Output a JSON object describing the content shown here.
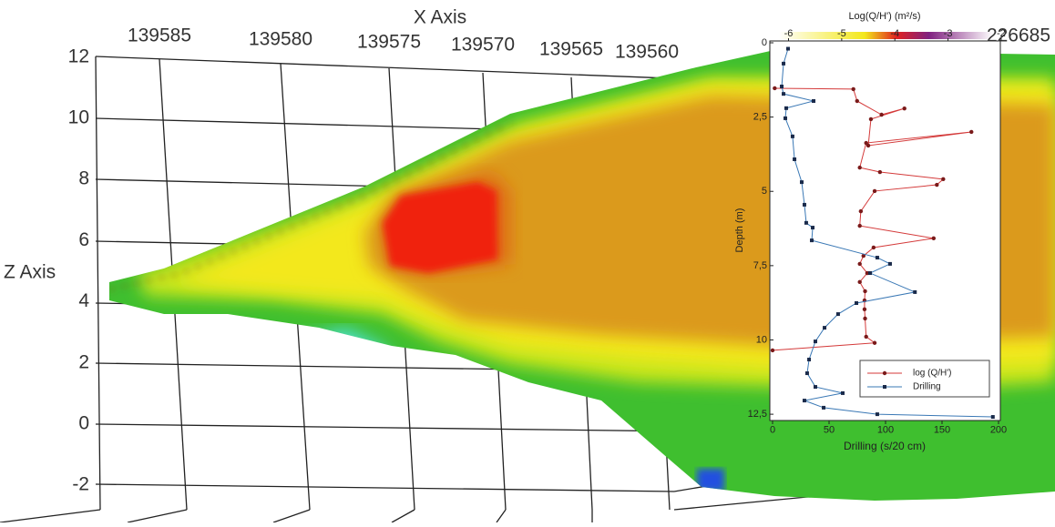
{
  "scene": {
    "x_axis_label": "X Axis",
    "x_tick_labels": [
      "139585",
      "139580",
      "139575",
      "139570",
      "139565",
      "139560"
    ],
    "z_axis_label": "Z Axis",
    "z_ticks": [
      12,
      10,
      8,
      6,
      4,
      2,
      0,
      -2
    ],
    "side_label": "226685"
  },
  "chart_data": {
    "type": "line",
    "x2_label": "Log(Q/H') (m²/s)",
    "y_label": "Depth (m)",
    "x_label": "Drilling (s/20 cm)",
    "xlim": [
      0,
      200
    ],
    "xticks": [
      0,
      50,
      100,
      150,
      200
    ],
    "x2lim": [
      -6.3,
      -2.05
    ],
    "x2ticks": [
      -6,
      -5,
      -4,
      -3,
      -2
    ],
    "ylim": [
      0,
      12.65
    ],
    "y_inverted": true,
    "yticks": [
      0,
      {
        "value": 2.5,
        "label": "2,5"
      },
      5,
      {
        "value": 7.5,
        "label": "7,5"
      },
      10,
      {
        "value": 12.5,
        "label": "12,5"
      }
    ],
    "series": [
      {
        "name": "log (Q/H')",
        "color": "#d43a3a",
        "axis": "x2",
        "depth": [
          1.53,
          1.56,
          1.96,
          2.42,
          2.21,
          2.57,
          3.46,
          3.0,
          3.37,
          4.2,
          4.35,
          4.59,
          4.78,
          4.99,
          5.67,
          6.16,
          6.58,
          6.89,
          7.17,
          7.44,
          7.75,
          8.05,
          8.36,
          8.67,
          8.97,
          9.28,
          9.89,
          10.1,
          10.35
        ],
        "values": [
          -6.26,
          -4.78,
          -4.71,
          -4.25,
          -3.82,
          -4.45,
          -4.5,
          -2.56,
          -4.54,
          -4.66,
          -4.28,
          -3.09,
          -3.21,
          -4.38,
          -4.64,
          -4.66,
          -3.27,
          -4.4,
          -4.59,
          -4.66,
          -4.52,
          -4.66,
          -4.56,
          -4.57,
          -4.57,
          -4.56,
          -4.54,
          -4.38,
          -6.3
        ]
      },
      {
        "name": "Drilling",
        "color": "#3a78b5",
        "axis": "x",
        "depth": [
          0.2,
          0.7,
          1.47,
          1.72,
          1.96,
          2.2,
          2.54,
          3.15,
          3.92,
          4.69,
          5.45,
          6.06,
          6.22,
          6.65,
          7.23,
          7.44,
          7.75,
          8.39,
          8.76,
          9.13,
          9.59,
          10.05,
          10.66,
          11.12,
          11.58,
          11.79,
          12.04,
          12.28,
          12.5,
          12.59
        ],
        "values": [
          13.7,
          9.7,
          8.1,
          9.7,
          36.3,
          12.1,
          11.3,
          17.7,
          19.4,
          25.8,
          28.2,
          29.8,
          35.5,
          34.7,
          92.7,
          104,
          86.3,
          126,
          74.2,
          58,
          46,
          37.9,
          32.3,
          30.6,
          37.9,
          62.1,
          28.2,
          45.2,
          92.7,
          195
        ]
      }
    ],
    "legend": "lower right"
  }
}
